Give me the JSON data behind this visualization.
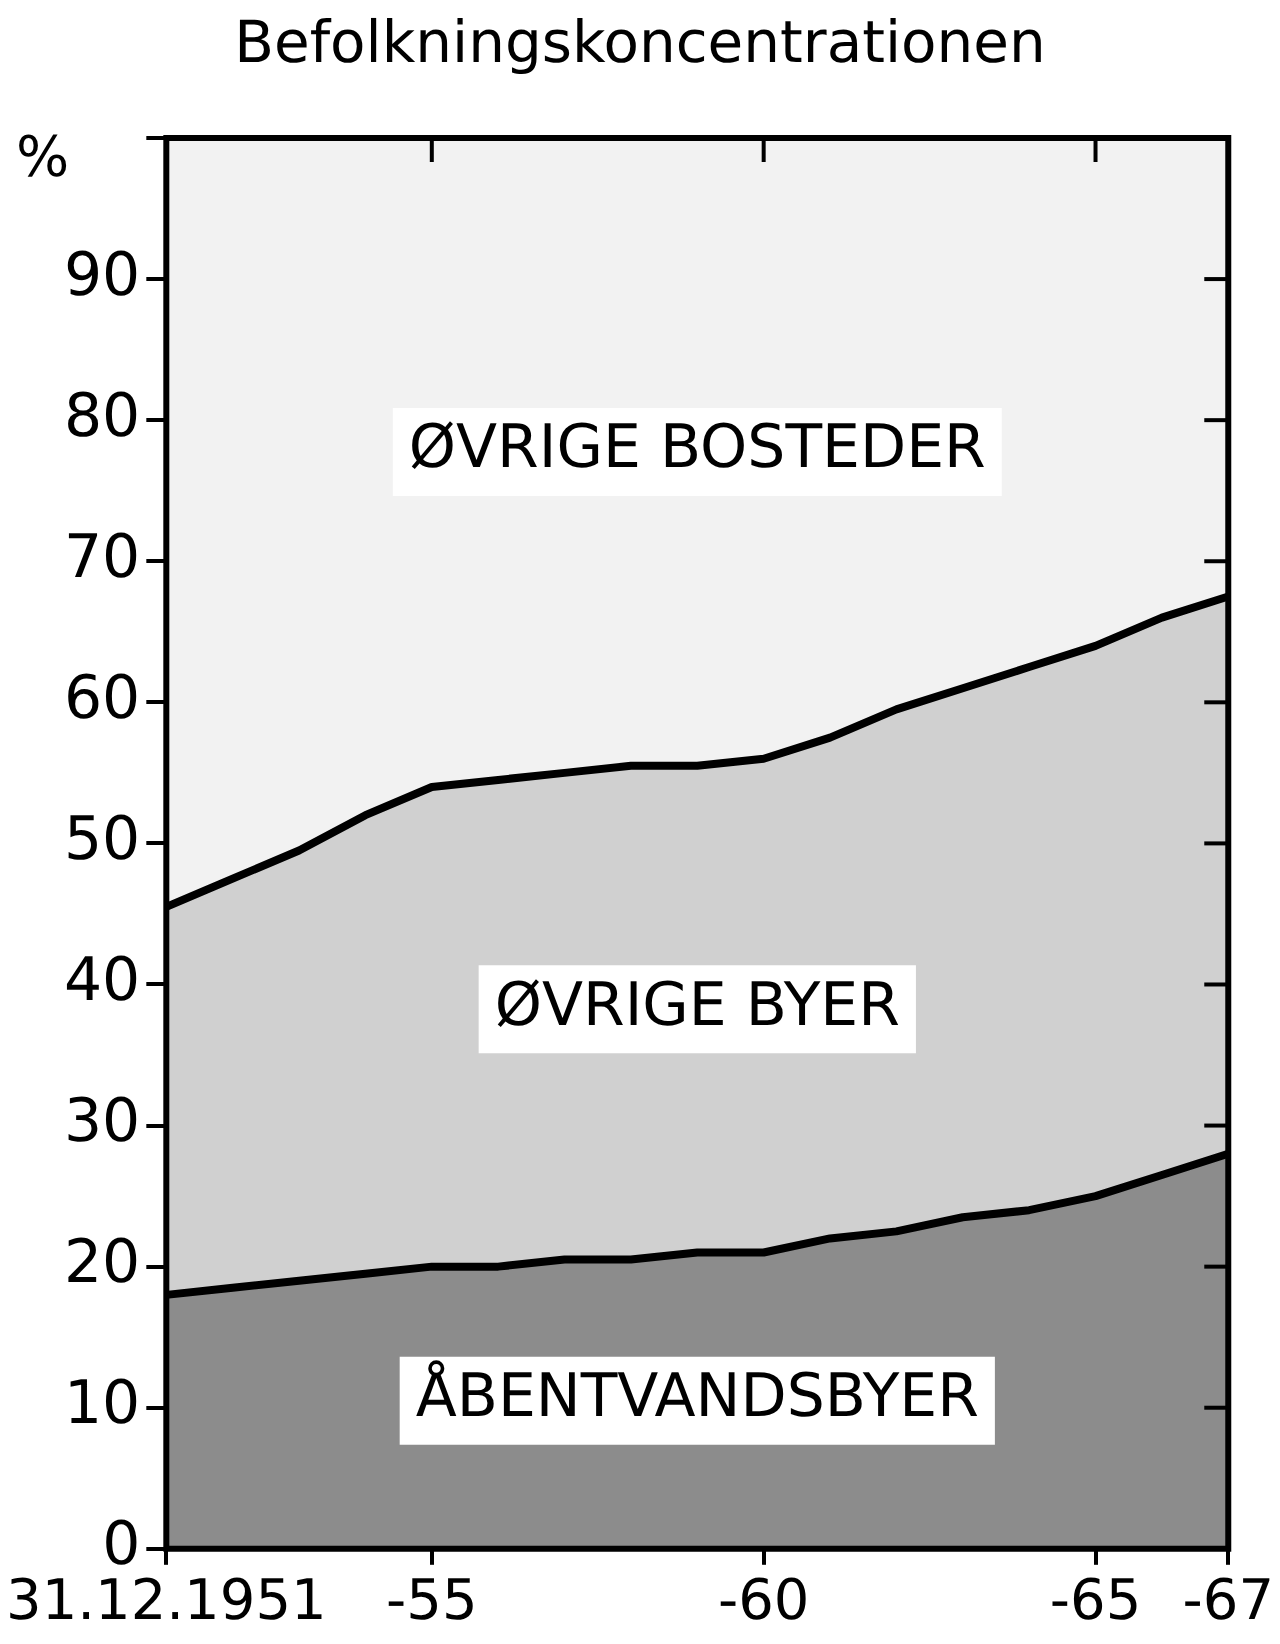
{
  "chart_data": {
    "type": "area",
    "title": "Befolkningskoncentrationen",
    "ylabel": "%",
    "categories": [
      "31.12.1951",
      null,
      null,
      null,
      "-55",
      null,
      null,
      null,
      null,
      "-60",
      null,
      null,
      null,
      null,
      "-65",
      null,
      "-67"
    ],
    "series": [
      {
        "name": "ÅBENTVANDSBYER",
        "color": "#8c8c8c",
        "values": [
          18,
          18.5,
          19,
          19.5,
          20,
          20,
          20.5,
          20.5,
          21,
          21,
          22,
          22.5,
          23.5,
          24,
          25,
          26.5,
          28
        ]
      },
      {
        "name": "ØVRIGE BYER",
        "color": "#d0d0d0",
        "values": [
          27.5,
          29,
          30.5,
          32.5,
          34,
          34.5,
          34.5,
          35,
          34.5,
          35,
          35.5,
          37,
          37.5,
          38.5,
          39,
          39.5,
          39.5
        ]
      },
      {
        "name": "ØVRIGE BOSTEDER",
        "color": "#f2f2f2",
        "values": [
          54.5,
          52.5,
          50.5,
          48,
          46,
          45.5,
          45,
          44.5,
          44.5,
          44,
          42.5,
          40.5,
          39,
          37.5,
          36,
          34,
          32.5
        ]
      }
    ],
    "stacked": true,
    "marker": "none",
    "legend": false,
    "ylim": [
      0,
      100
    ],
    "yticks": [
      0,
      10,
      20,
      30,
      40,
      50,
      60,
      70,
      80,
      90,
      {
        "value": 100,
        "label": null
      }
    ]
  }
}
